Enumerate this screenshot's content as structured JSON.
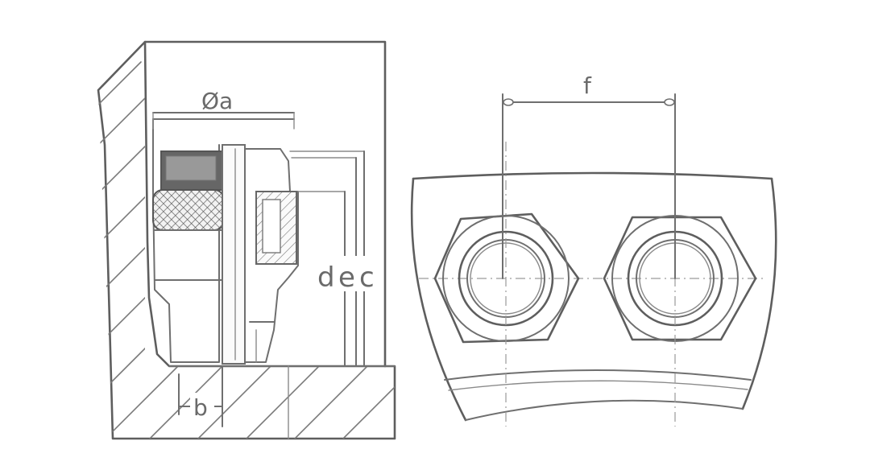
{
  "diagram": {
    "dimensions": {
      "diameter_a": "Øa",
      "b": "b",
      "d": "d",
      "e": "e",
      "c": "c",
      "f": "f"
    }
  }
}
